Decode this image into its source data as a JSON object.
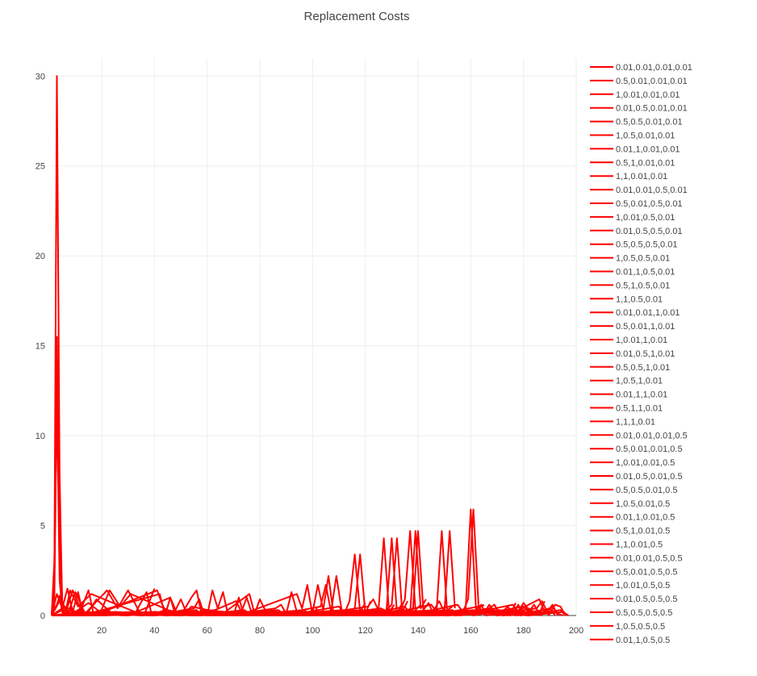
{
  "chart_data": {
    "type": "line",
    "title": "Replacement Costs",
    "xlabel": "",
    "ylabel": "",
    "xlim": [
      1,
      200
    ],
    "ylim": [
      0,
      31
    ],
    "x_ticks": [
      "20",
      "40",
      "60",
      "80",
      "100",
      "120",
      "140",
      "160",
      "180",
      "200"
    ],
    "y_ticks": [
      "0",
      "5",
      "10",
      "15",
      "20",
      "25",
      "30"
    ],
    "grid": true,
    "legend_position": "right",
    "series_color": "#ff0000",
    "series": [
      {
        "name": "0.01,0.01,0.01,0.01",
        "x": [
          1,
          2,
          3,
          4,
          5,
          6,
          8,
          12,
          20,
          30,
          40,
          50,
          60,
          80,
          100
        ],
        "y": [
          0,
          2,
          30,
          8,
          0.5,
          0,
          0.4,
          0,
          0.3,
          0,
          0.2,
          0,
          0.3,
          0,
          0
        ]
      },
      {
        "name": "0.5,0.01,0.01,0.01",
        "x": [
          1,
          2,
          3,
          4,
          5,
          7,
          10,
          14,
          18,
          24,
          28
        ],
        "y": [
          0,
          1.5,
          15.5,
          6,
          0.8,
          0,
          1.3,
          0,
          0.9,
          0.1,
          0
        ]
      },
      {
        "name": "1,0.01,0.01,0.01",
        "x": [
          1,
          2,
          3,
          4,
          5,
          6,
          9,
          13,
          22,
          26,
          30,
          35
        ],
        "y": [
          0,
          0.5,
          13,
          4,
          0.6,
          0,
          1.4,
          0,
          1.4,
          0.4,
          1.4,
          0
        ]
      },
      {
        "name": "0.01,0.5,0.01,0.01",
        "x": [
          1,
          2,
          3,
          4,
          5,
          6,
          8,
          11,
          16,
          36,
          40
        ],
        "y": [
          0,
          3,
          12,
          2,
          0.3,
          0,
          1.4,
          0.5,
          1.2,
          0,
          1.5
        ]
      },
      {
        "name": "0.5,0.5,0.01,0.01",
        "x": [
          1,
          3,
          4,
          5,
          6,
          12,
          15,
          17,
          41,
          43,
          45
        ],
        "y": [
          0,
          0.6,
          1.1,
          0.2,
          0,
          0.3,
          1.4,
          0,
          1.4,
          0.6,
          0
        ]
      },
      {
        "name": "1,0.5,0.01,0.01",
        "x": [
          1,
          3,
          5,
          7,
          9,
          11,
          13,
          42,
          44,
          46,
          48
        ],
        "y": [
          0,
          1.2,
          0.4,
          1.5,
          0.2,
          1.3,
          0,
          1.2,
          0,
          1.0,
          0
        ]
      },
      {
        "name": "0.01,1,0.01,0.01",
        "x": [
          1,
          4,
          8,
          19,
          23,
          27,
          31,
          50,
          54,
          56,
          58
        ],
        "y": [
          0,
          0.8,
          0.1,
          0,
          1.4,
          0.5,
          1.2,
          0,
          1.0,
          1.4,
          0
        ]
      },
      {
        "name": "0.5,1,0.01,0.01",
        "x": [
          1,
          6,
          10,
          15,
          21,
          33,
          37,
          39,
          55,
          57,
          59
        ],
        "y": [
          0,
          0.5,
          0.2,
          0.7,
          0,
          0.2,
          1.3,
          0,
          0.4,
          0.9,
          0
        ]
      },
      {
        "name": "1,1,0.01,0.01",
        "x": [
          1,
          5,
          20,
          25,
          38,
          44,
          60,
          62,
          64,
          66,
          68
        ],
        "y": [
          0,
          0.3,
          0,
          0.2,
          0,
          0.3,
          0,
          1.4,
          0.4,
          1.3,
          0
        ]
      },
      {
        "name": "0.01,0.01,0.5,0.01",
        "x": [
          1,
          10,
          30,
          46,
          48,
          50,
          52,
          54,
          70,
          72,
          74
        ],
        "y": [
          0,
          0.1,
          0,
          1.0,
          0.3,
          0.9,
          0.2,
          0.5,
          0,
          1.0,
          0
        ]
      },
      {
        "name": "0.5,0.01,0.5,0.01",
        "x": [
          1,
          12,
          35,
          56,
          58,
          71,
          73,
          75,
          77,
          79
        ],
        "y": [
          0,
          0.2,
          0,
          0.3,
          0,
          0.8,
          0.2,
          1.0,
          0.1,
          0
        ]
      },
      {
        "name": "1,0.01,0.5,0.01",
        "x": [
          1,
          15,
          40,
          60,
          65,
          76,
          78,
          80,
          82,
          84
        ],
        "y": [
          0,
          0.1,
          0,
          0.2,
          0,
          1.2,
          0.1,
          0.9,
          0.3,
          0
        ]
      },
      {
        "name": "0.01,0.5,0.5,0.01",
        "x": [
          1,
          18,
          45,
          63,
          67,
          86,
          88,
          90,
          92,
          94
        ],
        "y": [
          0,
          0.2,
          0,
          0.3,
          0,
          0.4,
          0.6,
          0.1,
          1.3,
          0.2
        ]
      },
      {
        "name": "0.5,0.5,0.5,0.01",
        "x": [
          1,
          22,
          50,
          69,
          72,
          94,
          96,
          98,
          100,
          102
        ],
        "y": [
          0,
          0.1,
          0,
          0.2,
          0,
          1.2,
          0.4,
          1.7,
          0,
          0.5
        ]
      },
      {
        "name": "1,0.5,0.5,0.01",
        "x": [
          1,
          25,
          55,
          74,
          78,
          100,
          102,
          104,
          106,
          108
        ],
        "y": [
          0,
          0.2,
          0,
          0.3,
          0,
          0.2,
          1.7,
          0.3,
          2.2,
          0
        ]
      },
      {
        "name": "0.01,1,0.5,0.01",
        "x": [
          1,
          28,
          57,
          81,
          85,
          103,
          105,
          107,
          109,
          111
        ],
        "y": [
          0,
          0.1,
          0,
          0.2,
          0,
          0.5,
          1.7,
          0.2,
          2.2,
          0.3
        ]
      },
      {
        "name": "0.5,1,0.5,0.01",
        "x": [
          1,
          32,
          62,
          87,
          90,
          110,
          112,
          114,
          116,
          118,
          120
        ],
        "y": [
          0,
          0.2,
          0,
          0.3,
          0,
          0.5,
          0.1,
          0.8,
          3.4,
          0.2,
          0.7
        ]
      },
      {
        "name": "1,1,0.5,0.01",
        "x": [
          1,
          36,
          66,
          91,
          95,
          114,
          116,
          118,
          120,
          122
        ],
        "y": [
          0,
          0.1,
          0,
          0.2,
          0,
          0.2,
          0.4,
          3.4,
          0.1,
          0.8
        ]
      },
      {
        "name": "0.01,0.01,1,0.01",
        "x": [
          1,
          40,
          70,
          97,
          99,
          121,
          123,
          125,
          127,
          129,
          131
        ],
        "y": [
          0,
          0.2,
          0,
          0.3,
          0,
          0.5,
          0.9,
          0.3,
          4.3,
          0.2,
          0.6
        ]
      },
      {
        "name": "0.5,0.01,1,0.01",
        "x": [
          1,
          44,
          73,
          101,
          104,
          126,
          128,
          130,
          132,
          134
        ],
        "y": [
          0,
          0.1,
          0,
          0.2,
          0,
          0.4,
          0.2,
          4.3,
          0.1,
          0.7
        ]
      },
      {
        "name": "1,0.01,1,0.01",
        "x": [
          1,
          48,
          76,
          106,
          109,
          128,
          130,
          132,
          134,
          136
        ],
        "y": [
          0,
          0.2,
          0,
          0.2,
          0,
          0.3,
          0.6,
          4.3,
          0.2,
          0.8
        ]
      },
      {
        "name": "0.01,0.5,1,0.01",
        "x": [
          1,
          52,
          79,
          112,
          115,
          133,
          135,
          137,
          139,
          141
        ],
        "y": [
          0,
          0.1,
          0,
          0.3,
          0,
          0.2,
          0.9,
          4.7,
          0.3,
          0.6
        ]
      },
      {
        "name": "0.5,0.5,1,0.01",
        "x": [
          1,
          56,
          83,
          117,
          119,
          135,
          137,
          139,
          141,
          143
        ],
        "y": [
          0,
          0.2,
          0,
          0.2,
          0,
          0.5,
          0.1,
          4.7,
          0.4,
          0.9
        ]
      },
      {
        "name": "1,0.5,1,0.01",
        "x": [
          1,
          58,
          86,
          119,
          122,
          138,
          140,
          142,
          144,
          146
        ],
        "y": [
          0,
          0.1,
          0,
          0.3,
          0,
          0.2,
          4.7,
          0.3,
          0.7,
          0
        ]
      },
      {
        "name": "0.01,1,1,0.01",
        "x": [
          1,
          61,
          89,
          123,
          126,
          145,
          147,
          149,
          151,
          153
        ],
        "y": [
          0,
          0.2,
          0,
          0.2,
          0,
          0.6,
          0.2,
          4.7,
          0.3,
          0.5
        ]
      },
      {
        "name": "0.5,1,1,0.01",
        "x": [
          1,
          64,
          92,
          127,
          131,
          146,
          148,
          150,
          152,
          154
        ],
        "y": [
          0,
          0.1,
          0,
          0.3,
          0,
          0.3,
          0.8,
          0.2,
          4.7,
          0.4
        ]
      },
      {
        "name": "1,1,1,0.01",
        "x": [
          1,
          67,
          95,
          132,
          136,
          155,
          157,
          159,
          161,
          163,
          165
        ],
        "y": [
          0,
          0.2,
          0,
          0.2,
          0,
          0.6,
          0.2,
          0.9,
          5.9,
          0.4,
          0.6
        ]
      },
      {
        "name": "0.01,0.01,0.01,0.5",
        "x": [
          1,
          70,
          98,
          137,
          141,
          158,
          160,
          162,
          164,
          166
        ],
        "y": [
          0,
          0.1,
          0,
          0.3,
          0,
          0.2,
          5.9,
          0.3,
          0.6,
          0
        ]
      },
      {
        "name": "0.5,0.01,0.01,0.5",
        "x": [
          1,
          72,
          101,
          142,
          145,
          163,
          165,
          167,
          169,
          171
        ],
        "y": [
          0,
          0.2,
          0,
          0.2,
          0,
          0.5,
          0.1,
          0.6,
          0.2,
          0
        ]
      },
      {
        "name": "1,0.01,0.01,0.5",
        "x": [
          1,
          75,
          104,
          147,
          150,
          167,
          169,
          171,
          173,
          175,
          177
        ],
        "y": [
          0,
          0.1,
          0,
          0.3,
          0,
          0.4,
          0.6,
          0.1,
          0.3,
          0,
          0.7
        ]
      },
      {
        "name": "0.01,0.5,0.01,0.5",
        "x": [
          1,
          78,
          108,
          151,
          154,
          172,
          174,
          176,
          178,
          180
        ],
        "y": [
          0,
          0.2,
          0,
          0.2,
          0,
          0.2,
          0.5,
          0.1,
          0.6,
          0
        ]
      },
      {
        "name": "0.5,0.5,0.01,0.5",
        "x": [
          1,
          82,
          111,
          153,
          156,
          176,
          178,
          180,
          182,
          184
        ],
        "y": [
          0,
          0.1,
          0,
          0.3,
          0,
          0.6,
          0.2,
          0.7,
          0.3,
          0
        ]
      },
      {
        "name": "1,0.5,0.01,0.5",
        "x": [
          1,
          85,
          115,
          157,
          161,
          180,
          182,
          184,
          186,
          188
        ],
        "y": [
          0,
          0.2,
          0,
          0.2,
          0,
          0.5,
          0.2,
          0.6,
          0.1,
          0.8
        ]
      },
      {
        "name": "0.01,1,0.01,0.5",
        "x": [
          1,
          88,
          118,
          162,
          166,
          185,
          187,
          189,
          191,
          193
        ],
        "y": [
          0,
          0.1,
          0,
          0.3,
          0,
          0.4,
          0.8,
          0.2,
          0.6,
          0
        ]
      },
      {
        "name": "0.5,1,0.01,0.5",
        "x": [
          1,
          91,
          122,
          166,
          170,
          188,
          190,
          192,
          194,
          196
        ],
        "y": [
          0,
          0.2,
          0,
          0.2,
          0,
          0.3,
          0.1,
          0.6,
          0.5,
          0
        ]
      },
      {
        "name": "1,1,0.01,0.5",
        "x": [
          1,
          93,
          125,
          168,
          172,
          189,
          191,
          193,
          195
        ],
        "y": [
          0,
          0.1,
          0,
          0.3,
          0,
          0.2,
          0.5,
          0.1,
          0
        ]
      },
      {
        "name": "0.01,0.01,0.5,0.5",
        "x": [
          1,
          96,
          129,
          170,
          174,
          186,
          188,
          190
        ],
        "y": [
          0,
          0.2,
          0,
          0.2,
          0,
          0.9,
          0.2,
          0
        ]
      },
      {
        "name": "0.5,0.01,0.5,0.5",
        "x": [
          1,
          99,
          133,
          171,
          175,
          181,
          183,
          187
        ],
        "y": [
          0,
          0.1,
          0,
          0.3,
          0,
          0.5,
          0.2,
          0
        ]
      },
      {
        "name": "1,0.01,0.5,0.5",
        "x": [
          1,
          102,
          136,
          173,
          177,
          182,
          184
        ],
        "y": [
          0,
          0.2,
          0,
          0.2,
          0,
          0.4,
          0
        ]
      },
      {
        "name": "0.01,0.5,0.5,0.5",
        "x": [
          1,
          105,
          139,
          174,
          178,
          183,
          185
        ],
        "y": [
          0,
          0.1,
          0,
          0.3,
          0,
          0.3,
          0
        ]
      },
      {
        "name": "0.5,0.5,0.5,0.5",
        "x": [
          1,
          108,
          143,
          175,
          179,
          190,
          192
        ],
        "y": [
          0,
          0.2,
          0,
          0.2,
          0,
          0.4,
          0
        ]
      },
      {
        "name": "1,0.5,0.5,0.5",
        "x": [
          1,
          112,
          147,
          177,
          181,
          194,
          196
        ],
        "y": [
          0,
          0.1,
          0,
          0.3,
          0,
          0.3,
          0
        ]
      },
      {
        "name": "0.01,1,0.5,0.5",
        "x": [
          1,
          116,
          151,
          178,
          182,
          195,
          197
        ],
        "y": [
          0,
          0.2,
          0,
          0.2,
          0,
          0.2,
          0
        ]
      }
    ]
  }
}
